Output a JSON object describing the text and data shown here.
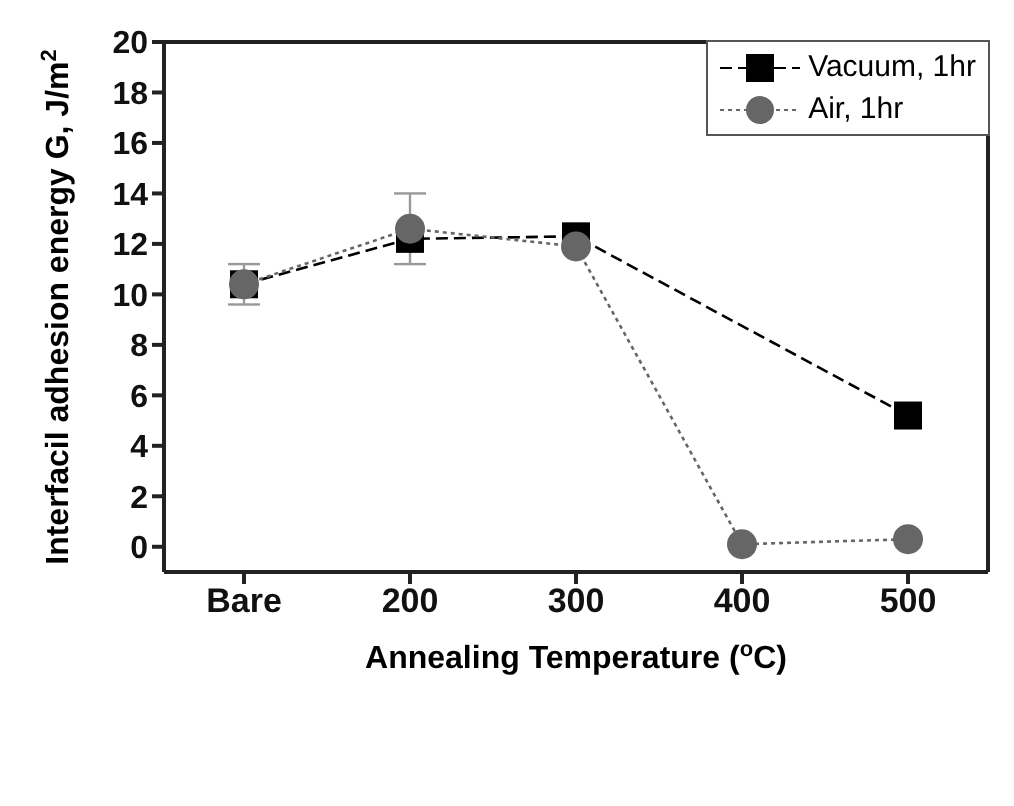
{
  "chart_data": {
    "type": "line",
    "xlabel": "Annealing Temperature ($^{o}$C)",
    "ylabel": "Interfacil adhesion energy G, J/m$^{2}$",
    "categories": [
      "Bare",
      "200",
      "300",
      "400",
      "500"
    ],
    "ylim": [
      -1,
      20
    ],
    "yticks": [
      0,
      2,
      4,
      6,
      8,
      10,
      12,
      14,
      16,
      18,
      20
    ],
    "legend": "top right",
    "series": [
      {
        "name": "Vacuum, 1hr",
        "color": "#000000",
        "marker": "square",
        "line_style": "dashed",
        "values": [
          10.4,
          12.2,
          12.3,
          null,
          5.2
        ]
      },
      {
        "name": "Air, 1hr",
        "color": "#666666",
        "marker": "circle",
        "line_style": "dotted",
        "values": [
          10.4,
          12.6,
          11.9,
          0.1,
          0.3
        ],
        "errors": [
          0.8,
          1.4,
          null,
          null,
          null
        ]
      }
    ]
  }
}
